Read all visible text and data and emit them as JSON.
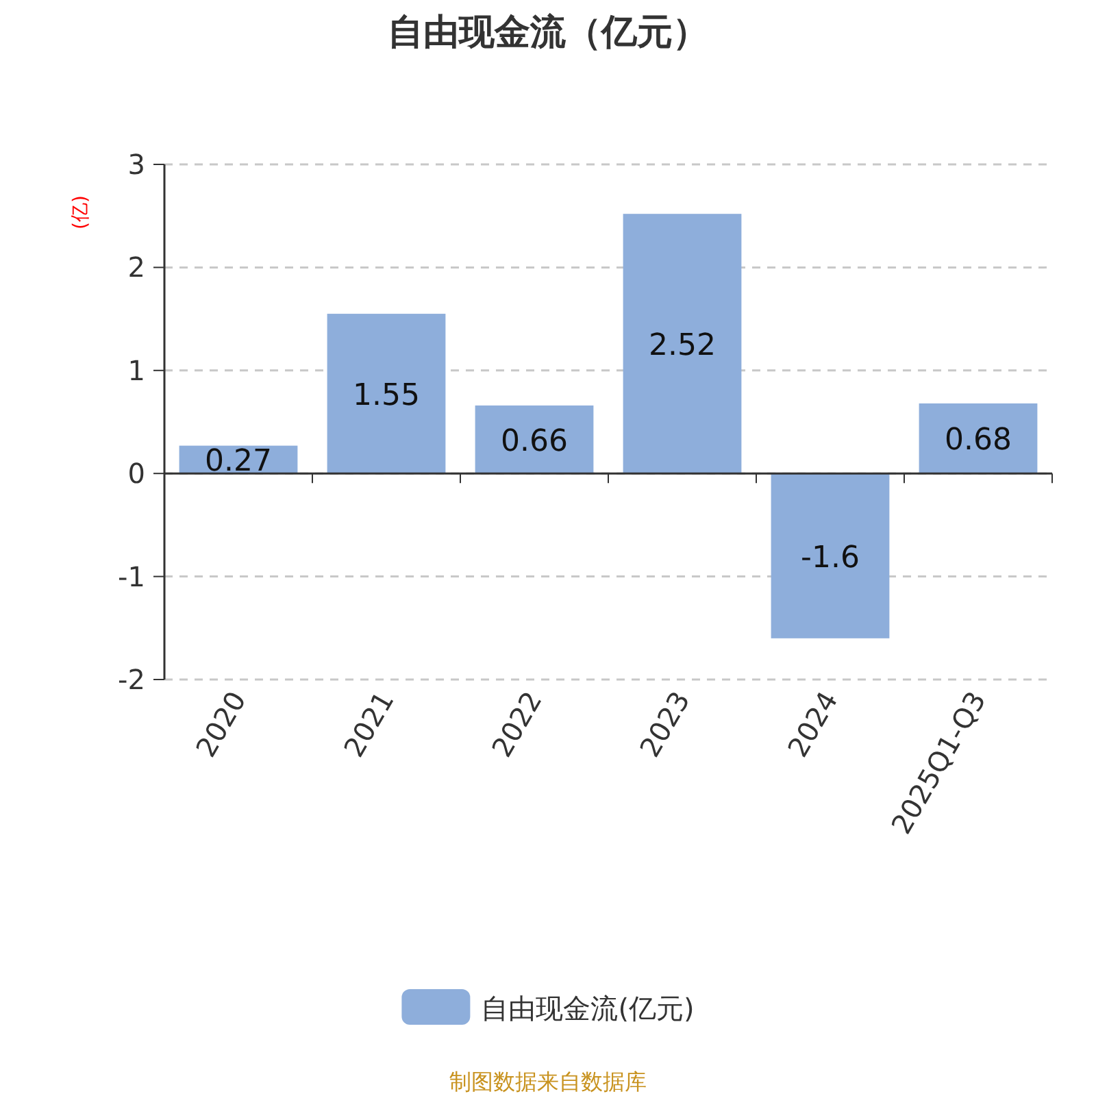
{
  "chart_data": {
    "type": "bar",
    "title": "自由现金流（亿元）",
    "ylabel": "(亿)",
    "categories": [
      "2020",
      "2021",
      "2022",
      "2023",
      "2024",
      "2025Q1-Q3"
    ],
    "series": [
      {
        "name": "自由现金流(亿元)",
        "color": "#8eaedb",
        "values": [
          0.27,
          1.55,
          0.66,
          2.52,
          -1.6,
          0.68
        ]
      }
    ],
    "ylim": [
      -2,
      3
    ],
    "yticks": [
      -2,
      -1,
      0,
      1,
      2,
      3
    ],
    "grid": "y",
    "legend": "bottom",
    "data_labels": true,
    "annotations": [
      "制图数据来自数据库"
    ]
  }
}
